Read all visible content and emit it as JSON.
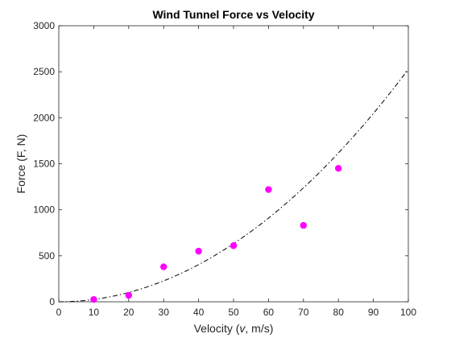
{
  "chart_data": {
    "type": "scatter",
    "title": "Wind Tunnel Force vs Velocity",
    "xlabel_prefix": "Velocity (",
    "xlabel_var": "v",
    "xlabel_suffix": ", m/s)",
    "ylabel": "Force (F, N)",
    "xlim": [
      0,
      100
    ],
    "ylim": [
      0,
      3000
    ],
    "x_ticks": [
      0,
      10,
      20,
      30,
      40,
      50,
      60,
      70,
      80,
      90,
      100
    ],
    "y_ticks": [
      0,
      500,
      1000,
      1500,
      2000,
      2500,
      3000
    ],
    "grid": false,
    "series": [
      {
        "kind": "points",
        "color": "#ff00ff",
        "x": [
          10,
          20,
          30,
          40,
          50,
          60,
          70,
          80
        ],
        "y": [
          25,
          70,
          380,
          550,
          610,
          1220,
          830,
          1450
        ]
      },
      {
        "kind": "fit-curve",
        "style": "dash-dot",
        "color": "#000000",
        "equation": "F = 0.2527 * v^2",
        "x": [
          0,
          10,
          20,
          30,
          40,
          50,
          60,
          70,
          80,
          90,
          100
        ],
        "y": [
          0,
          25.3,
          101.1,
          227.4,
          404.3,
          631.8,
          909.7,
          1238.2,
          1617.3,
          2046.9,
          2527
        ]
      }
    ]
  }
}
